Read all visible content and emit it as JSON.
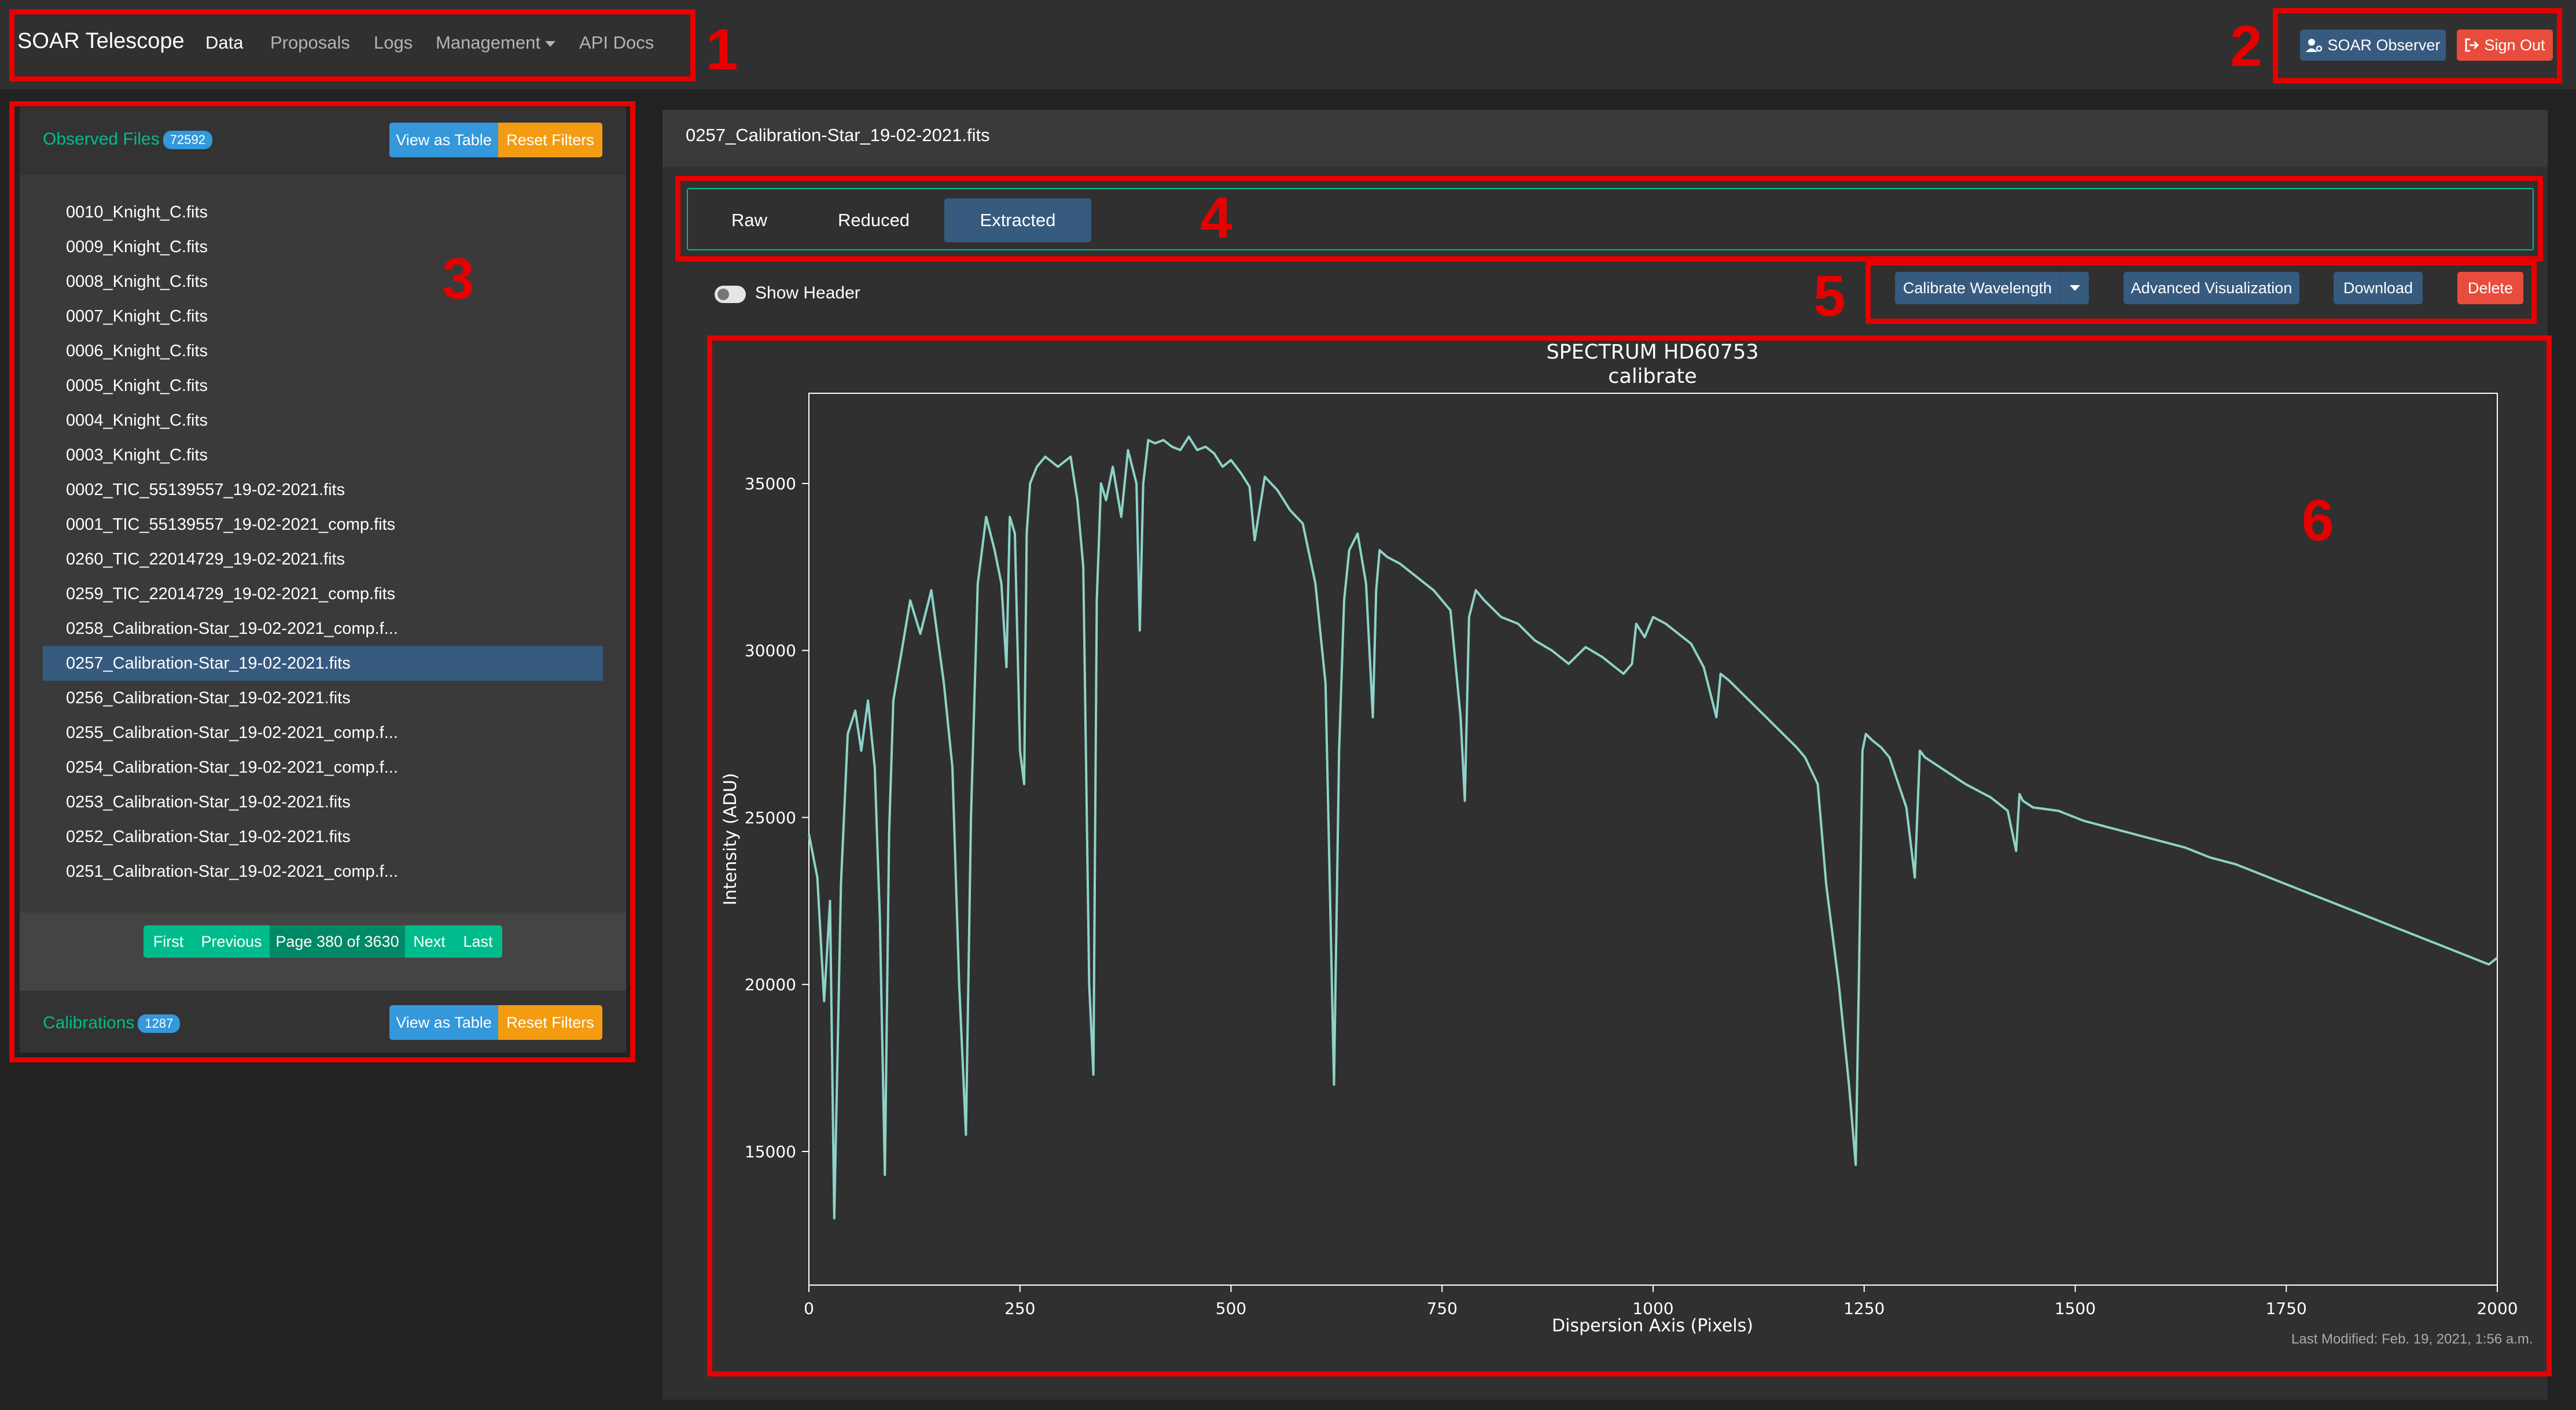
{
  "navbar": {
    "brand": "SOAR Telescope",
    "links": [
      "Data",
      "Proposals",
      "Logs",
      "Management",
      "API Docs"
    ],
    "user_button": "SOAR Observer",
    "signout_button": "Sign Out"
  },
  "annotations": [
    "1",
    "2",
    "3",
    "4",
    "5",
    "6"
  ],
  "sidebar": {
    "observed_title": "Observed Files",
    "observed_count": "72592",
    "view_table": "View as Table",
    "reset_filters": "Reset Filters",
    "files": [
      "0010_Knight_C.fits",
      "0009_Knight_C.fits",
      "0008_Knight_C.fits",
      "0007_Knight_C.fits",
      "0006_Knight_C.fits",
      "0005_Knight_C.fits",
      "0004_Knight_C.fits",
      "0003_Knight_C.fits",
      "0002_TIC_55139557_19-02-2021.fits",
      "0001_TIC_55139557_19-02-2021_comp.fits",
      "0260_TIC_22014729_19-02-2021.fits",
      "0259_TIC_22014729_19-02-2021_comp.fits",
      "0258_Calibration-Star_19-02-2021_comp.f...",
      "0257_Calibration-Star_19-02-2021.fits",
      "0256_Calibration-Star_19-02-2021.fits",
      "0255_Calibration-Star_19-02-2021_comp.f...",
      "0254_Calibration-Star_19-02-2021_comp.f...",
      "0253_Calibration-Star_19-02-2021.fits",
      "0252_Calibration-Star_19-02-2021.fits",
      "0251_Calibration-Star_19-02-2021_comp.f..."
    ],
    "selected_index": 13,
    "pager": {
      "first": "First",
      "previous": "Previous",
      "page": "Page 380 of 3630",
      "next": "Next",
      "last": "Last"
    },
    "calibrations_title": "Calibrations",
    "calibrations_count": "1287"
  },
  "main": {
    "file_title": "0257_Calibration-Star_19-02-2021.fits",
    "tabs": [
      "Raw",
      "Reduced",
      "Extracted"
    ],
    "active_tab": "Extracted",
    "show_header": "Show Header",
    "actions": {
      "calibrate": "Calibrate Wavelength",
      "advanced": "Advanced Visualization",
      "download": "Download",
      "delete": "Delete"
    },
    "last_modified": "Last Modified: Feb. 19, 2021, 1:56 a.m."
  },
  "colors": {
    "accent_green": "#00bc8c",
    "primary_blue": "#375a7f",
    "info_blue": "#3498db",
    "warning_orange": "#f39c12",
    "danger_red": "#e74c3c",
    "spectrum_line": "#8dd3c7",
    "annotation_red": "#e60000"
  },
  "chart_data": {
    "type": "line",
    "title": "SPECTRUM HD60753",
    "subtitle": "calibrate",
    "xlabel": "Dispersion Axis (Pixels)",
    "ylabel": "Intensity (ADU)",
    "xlim": [
      0,
      2000
    ],
    "ylim": [
      11000,
      37700
    ],
    "xticks": [
      0,
      250,
      500,
      750,
      1000,
      1250,
      1500,
      1750,
      2000
    ],
    "yticks": [
      15000,
      20000,
      25000,
      30000,
      35000
    ],
    "series": [
      {
        "x": [
          0,
          10,
          18,
          25,
          30,
          38,
          46,
          55,
          62,
          70,
          78,
          84,
          90,
          95,
          100,
          110,
          120,
          132,
          145,
          160,
          170,
          178,
          186,
          192,
          200,
          210,
          220,
          228,
          234,
          238,
          244,
          250,
          255,
          258,
          262,
          270,
          280,
          295,
          310,
          318,
          325,
          332,
          337,
          341,
          346,
          352,
          360,
          370,
          378,
          388,
          392,
          396,
          402,
          410,
          420,
          430,
          440,
          450,
          460,
          470,
          480,
          490,
          500,
          512,
          522,
          528,
          540,
          555,
          570,
          585,
          600,
          612,
          622,
          628,
          634,
          640,
          650,
          660,
          668,
          672,
          676,
          685,
          700,
          720,
          740,
          760,
          772,
          777,
          782,
          790,
          800,
          820,
          840,
          860,
          880,
          900,
          920,
          940,
          955,
          965,
          975,
          980,
          990,
          1000,
          1015,
          1030,
          1045,
          1060,
          1070,
          1075,
          1080,
          1090,
          1110,
          1130,
          1150,
          1170,
          1180,
          1195,
          1205,
          1220,
          1232,
          1240,
          1244,
          1248,
          1252,
          1260,
          1270,
          1280,
          1300,
          1310,
          1316,
          1322,
          1340,
          1370,
          1400,
          1420,
          1430,
          1434,
          1438,
          1450,
          1480,
          1510,
          1540,
          1570,
          1600,
          1630,
          1660,
          1690,
          1720,
          1750,
          1780,
          1810,
          1840,
          1870,
          1900,
          1930,
          1960,
          1990,
          2000
        ],
        "y": [
          24500,
          23200,
          19500,
          22500,
          13000,
          23000,
          27500,
          28200,
          27000,
          28500,
          26500,
          22000,
          14300,
          24500,
          28500,
          30000,
          31500,
          30500,
          31800,
          29000,
          26500,
          20000,
          15500,
          25000,
          32000,
          34000,
          33000,
          32000,
          29500,
          34000,
          33500,
          27000,
          26000,
          33500,
          35000,
          35500,
          35800,
          35500,
          35800,
          34500,
          32500,
          20000,
          17300,
          31500,
          35000,
          34500,
          35500,
          34000,
          36000,
          35000,
          30600,
          35000,
          36300,
          36200,
          36300,
          36100,
          36000,
          36400,
          36000,
          36100,
          35900,
          35500,
          35700,
          35300,
          34900,
          33300,
          35200,
          34800,
          34200,
          33800,
          32000,
          29000,
          17000,
          27000,
          31500,
          33000,
          33500,
          32000,
          28000,
          31800,
          33000,
          32800,
          32600,
          32200,
          31800,
          31200,
          28000,
          25500,
          31000,
          31800,
          31500,
          31000,
          30800,
          30300,
          30000,
          29600,
          30100,
          29800,
          29500,
          29300,
          29600,
          30800,
          30400,
          31000,
          30800,
          30500,
          30200,
          29500,
          28500,
          28000,
          29300,
          29100,
          28600,
          28100,
          27600,
          27100,
          26800,
          26000,
          23000,
          20000,
          17000,
          14600,
          20500,
          27000,
          27500,
          27300,
          27100,
          26800,
          25300,
          23200,
          27000,
          26800,
          26500,
          26000,
          25600,
          25200,
          24000,
          25700,
          25500,
          25300,
          25200,
          24900,
          24700,
          24500,
          24300,
          24100,
          23800,
          23600,
          23300,
          23000,
          22700,
          22400,
          22100,
          21800,
          21500,
          21200,
          20900,
          20600,
          20800
        ]
      }
    ]
  }
}
